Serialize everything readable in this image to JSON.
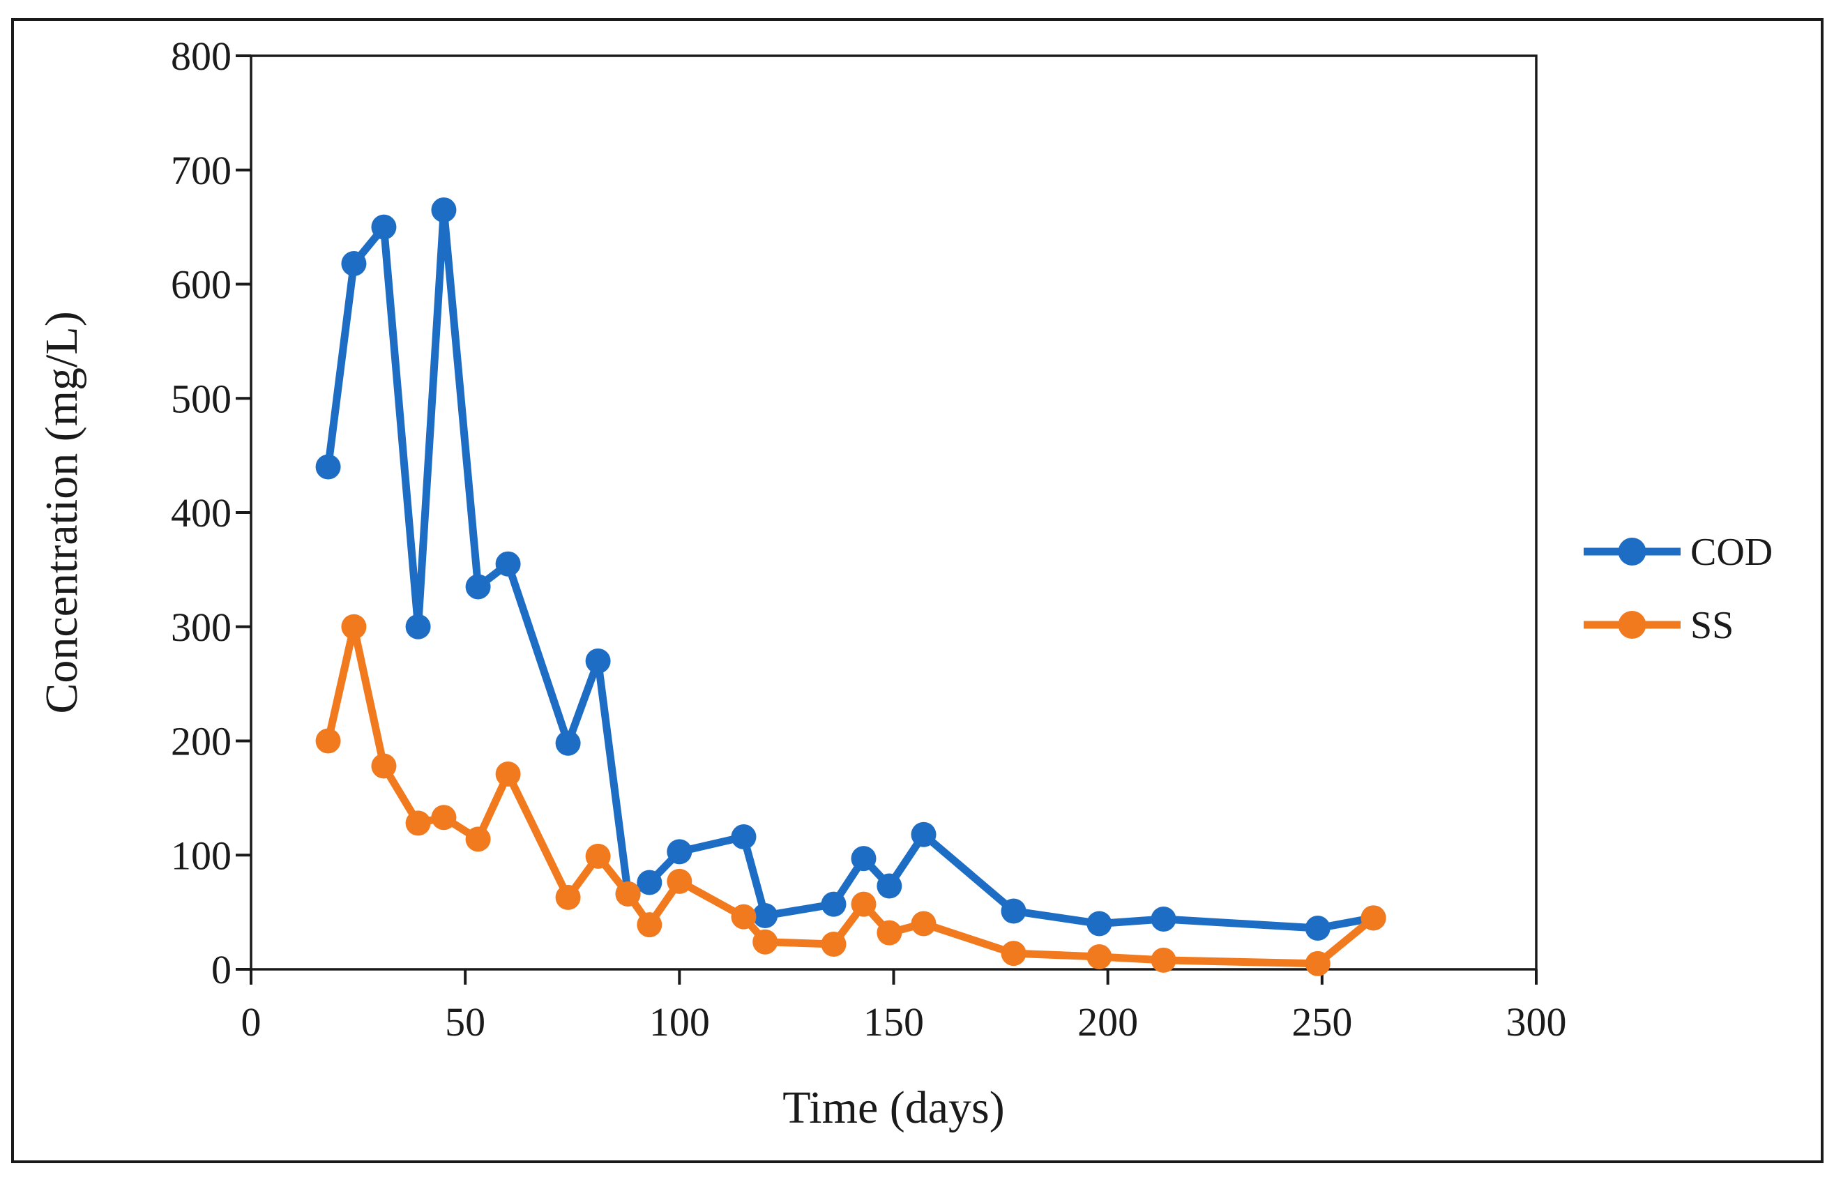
{
  "figure": {
    "background_color": "#ffffff",
    "border_color": "#1a1a1a"
  },
  "chart_data": {
    "type": "line",
    "title": "",
    "xlabel": "Time (days)",
    "ylabel": "Concentration (mg/L)",
    "xlim": [
      0,
      300
    ],
    "ylim": [
      0,
      800
    ],
    "x_ticks": [
      0,
      50,
      100,
      150,
      200,
      250,
      300
    ],
    "y_ticks": [
      0,
      100,
      200,
      300,
      400,
      500,
      600,
      700,
      800
    ],
    "grid": false,
    "legend_position": "right",
    "marker": "circle",
    "x": [
      18,
      24,
      31,
      39,
      45,
      53,
      60,
      74,
      81,
      88,
      93,
      100,
      115,
      120,
      136,
      143,
      149,
      157,
      178,
      198,
      213,
      249,
      262
    ],
    "series": [
      {
        "name": "COD",
        "color": "#1E6DC5",
        "values": [
          440,
          618,
          650,
          300,
          665,
          335,
          355,
          198,
          270,
          66,
          76,
          103,
          116,
          47,
          57,
          97,
          73,
          118,
          51,
          40,
          44,
          36,
          45
        ]
      },
      {
        "name": "SS",
        "color": "#F27A1E",
        "values": [
          200,
          300,
          178,
          128,
          133,
          114,
          171,
          63,
          99,
          66,
          39,
          77,
          46,
          24,
          22,
          57,
          32,
          40,
          14,
          11,
          8,
          5,
          45
        ]
      }
    ]
  }
}
